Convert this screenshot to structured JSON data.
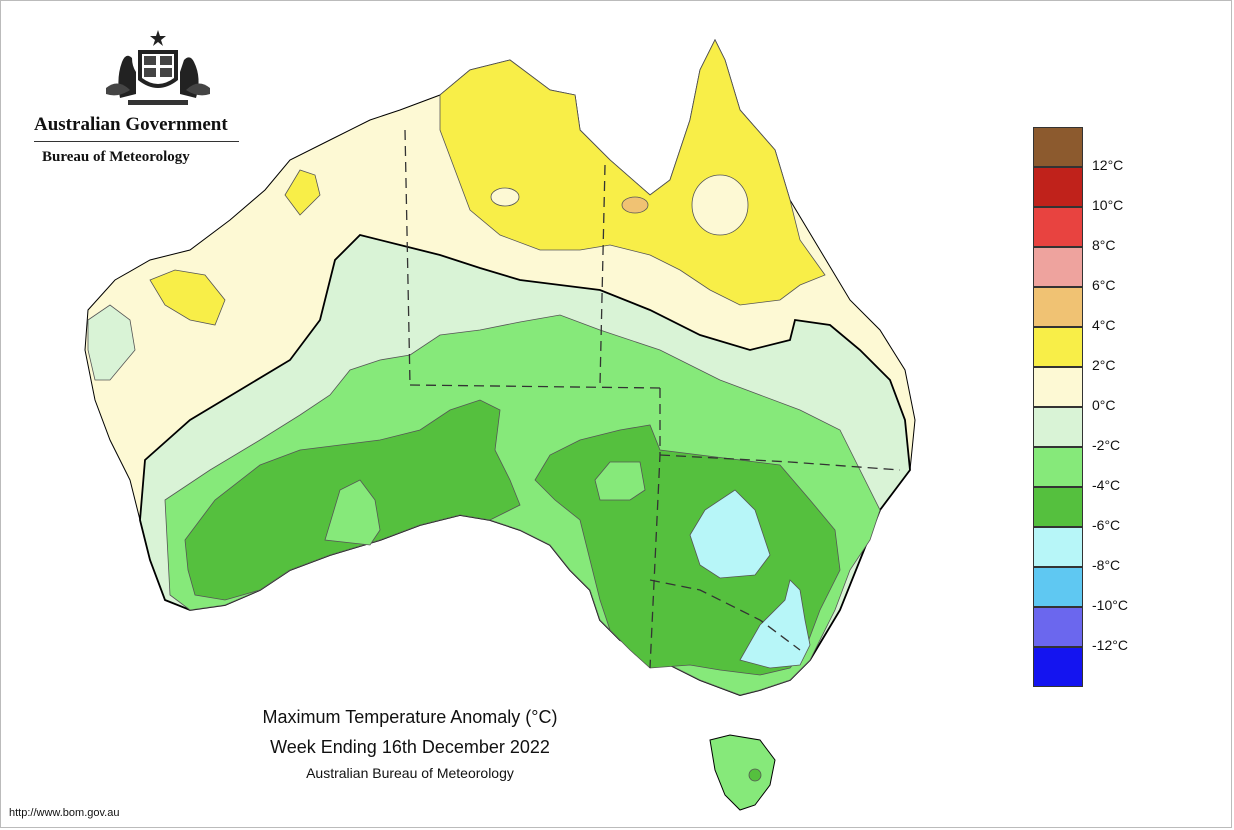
{
  "branding": {
    "government": "Australian Government",
    "bureau": "Bureau of Meteorology"
  },
  "map": {
    "title_line1": "Maximum Temperature Anomaly (°C)",
    "title_line2": "Week Ending 16th December 2022",
    "credit": "Australian Bureau of Meteorology",
    "url": "http://www.bom.gov.au"
  },
  "legend": {
    "colors": [
      "#8c5a2e",
      "#c0221b",
      "#e84340",
      "#eea39e",
      "#f0c273",
      "#f8ee48",
      "#fdf9d4",
      "#d9f3d6",
      "#86e97a",
      "#55c03e",
      "#b7f6f8",
      "#5fc8f2",
      "#6b67ee",
      "#1414f0"
    ],
    "labels": [
      "12°C",
      "10°C",
      "8°C",
      "6°C",
      "4°C",
      "2°C",
      "0°C",
      "-2°C",
      "-4°C",
      "-6°C",
      "-8°C",
      "-10°C",
      "-12°C"
    ]
  }
}
